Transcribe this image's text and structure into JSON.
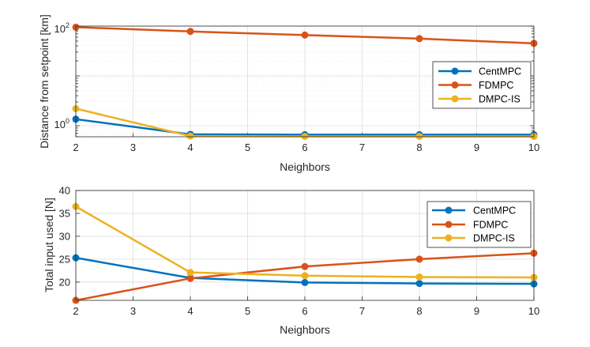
{
  "chart_data": [
    {
      "type": "line",
      "yscale": "log",
      "xlabel": "Neighbors",
      "ylabel": "Distance from setpoint [km]",
      "x": [
        2,
        4,
        6,
        8,
        10
      ],
      "xlim": [
        2,
        10
      ],
      "xticks": [
        "2",
        "3",
        "4",
        "5",
        "6",
        "7",
        "8",
        "9",
        "10"
      ],
      "ylim": [
        0.6,
        100
      ],
      "ytick_labels": [
        {
          "value": 1,
          "base": "10",
          "exp": "0"
        },
        {
          "value": 100,
          "base": "10",
          "exp": "2"
        }
      ],
      "grid": true,
      "legend_position": "right",
      "series": [
        {
          "name": "CentMPC",
          "color": "#0072BD",
          "values": [
            1.35,
            0.67,
            0.66,
            0.66,
            0.66
          ]
        },
        {
          "name": "FDMPC",
          "color": "#D95319",
          "values": [
            95,
            78,
            66,
            56,
            45
          ]
        },
        {
          "name": "DMPC-IS",
          "color": "#EDB120",
          "values": [
            2.2,
            0.62,
            0.61,
            0.61,
            0.61
          ]
        }
      ]
    },
    {
      "type": "line",
      "yscale": "linear",
      "xlabel": "Neighbors",
      "ylabel": "Total input used [N]",
      "x": [
        2,
        4,
        6,
        8,
        10
      ],
      "xlim": [
        2,
        10
      ],
      "xticks": [
        "2",
        "3",
        "4",
        "5",
        "6",
        "7",
        "8",
        "9",
        "10"
      ],
      "ylim": [
        16,
        40
      ],
      "yticks": [
        "20",
        "25",
        "30",
        "35",
        "40"
      ],
      "grid": true,
      "legend_position": "top-right",
      "series": [
        {
          "name": "CentMPC",
          "color": "#0072BD",
          "values": [
            25.3,
            20.9,
            19.9,
            19.7,
            19.6
          ]
        },
        {
          "name": "FDMPC",
          "color": "#D95319",
          "values": [
            16.0,
            20.8,
            23.4,
            25.0,
            26.3
          ]
        },
        {
          "name": "DMPC-IS",
          "color": "#EDB120",
          "values": [
            36.5,
            22.1,
            21.4,
            21.1,
            21.0
          ]
        }
      ]
    }
  ]
}
